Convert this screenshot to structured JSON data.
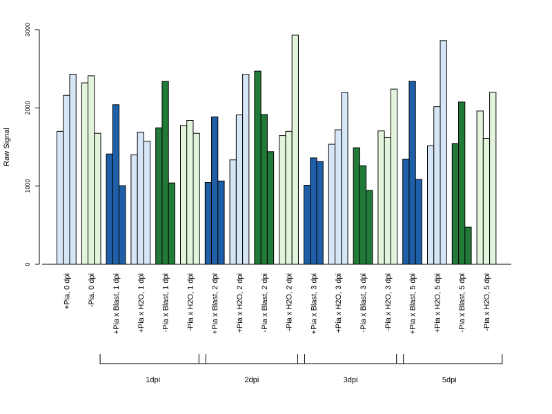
{
  "chart_data": {
    "type": "bar",
    "ylabel": "Raw Signal",
    "ylim": [
      0,
      3000
    ],
    "yticks": [
      0,
      1000,
      2000,
      3000
    ],
    "grid": false,
    "colors": {
      "light_blue": "#d6e6f7",
      "light_green": "#e2f5dc",
      "dark_blue": "#1f5fa8",
      "dark_green": "#217a37"
    },
    "categories": [
      {
        "label": "+Pia, 0 dpi",
        "color": "#d6e6f7",
        "values": [
          1700,
          2160,
          2430
        ]
      },
      {
        "label": "-Pia, 0 dpi",
        "color": "#e2f5dc",
        "values": [
          2320,
          2410,
          1675
        ]
      },
      {
        "label": "+Pia x Blast, 1 dpi",
        "color": "#1f5fa8",
        "values": [
          1410,
          2040,
          1005
        ]
      },
      {
        "label": "+Pia x H2O, 1 dpi",
        "color": "#d6e6f7",
        "values": [
          1400,
          1690,
          1575
        ]
      },
      {
        "label": "-Pia x Blast, 1 dpi",
        "color": "#217a37",
        "values": [
          1745,
          2340,
          1040
        ]
      },
      {
        "label": "-Pia x H2O, 1 dpi",
        "color": "#e2f5dc",
        "values": [
          1775,
          1840,
          1675
        ]
      },
      {
        "label": "+Pia x Blast, 2 dpi",
        "color": "#1f5fa8",
        "values": [
          1045,
          1885,
          1065
        ]
      },
      {
        "label": "+Pia x H2O, 2 dpi",
        "color": "#d6e6f7",
        "values": [
          1335,
          1910,
          2430
        ]
      },
      {
        "label": "-Pia x Blast, 2 dpi",
        "color": "#217a37",
        "values": [
          2470,
          1915,
          1440
        ]
      },
      {
        "label": "-Pia x H2O, 2 dpi",
        "color": "#e2f5dc",
        "values": [
          1645,
          1700,
          2930
        ]
      },
      {
        "label": "+Pia x Blast, 3 dpi",
        "color": "#1f5fa8",
        "values": [
          1010,
          1360,
          1315
        ]
      },
      {
        "label": "+Pia x H2O, 3 dpi",
        "color": "#d6e6f7",
        "values": [
          1535,
          1720,
          2195
        ]
      },
      {
        "label": "-Pia x Blast, 3 dpi",
        "color": "#217a37",
        "values": [
          1490,
          1260,
          945
        ]
      },
      {
        "label": "-Pia x H2O, 3 dpi",
        "color": "#e2f5dc",
        "values": [
          1705,
          1620,
          2240
        ]
      },
      {
        "label": "+Pia x Blast, 5 dpi",
        "color": "#1f5fa8",
        "values": [
          1345,
          2340,
          1085
        ]
      },
      {
        "label": "+Pia x H2O, 5 dpi",
        "color": "#d6e6f7",
        "values": [
          1515,
          2015,
          2860
        ]
      },
      {
        "label": "-Pia x Blast, 5 dpi",
        "color": "#217a37",
        "values": [
          1545,
          2075,
          475
        ]
      },
      {
        "label": "-Pia x H2O, 5 dpi",
        "color": "#e2f5dc",
        "values": [
          1960,
          1610,
          2200
        ]
      }
    ],
    "groups": [
      {
        "label": "1dpi",
        "first": 2,
        "last": 5
      },
      {
        "label": "2dpi",
        "first": 6,
        "last": 9
      },
      {
        "label": "3dpi",
        "first": 10,
        "last": 13
      },
      {
        "label": "5dpi",
        "first": 14,
        "last": 17
      }
    ]
  }
}
